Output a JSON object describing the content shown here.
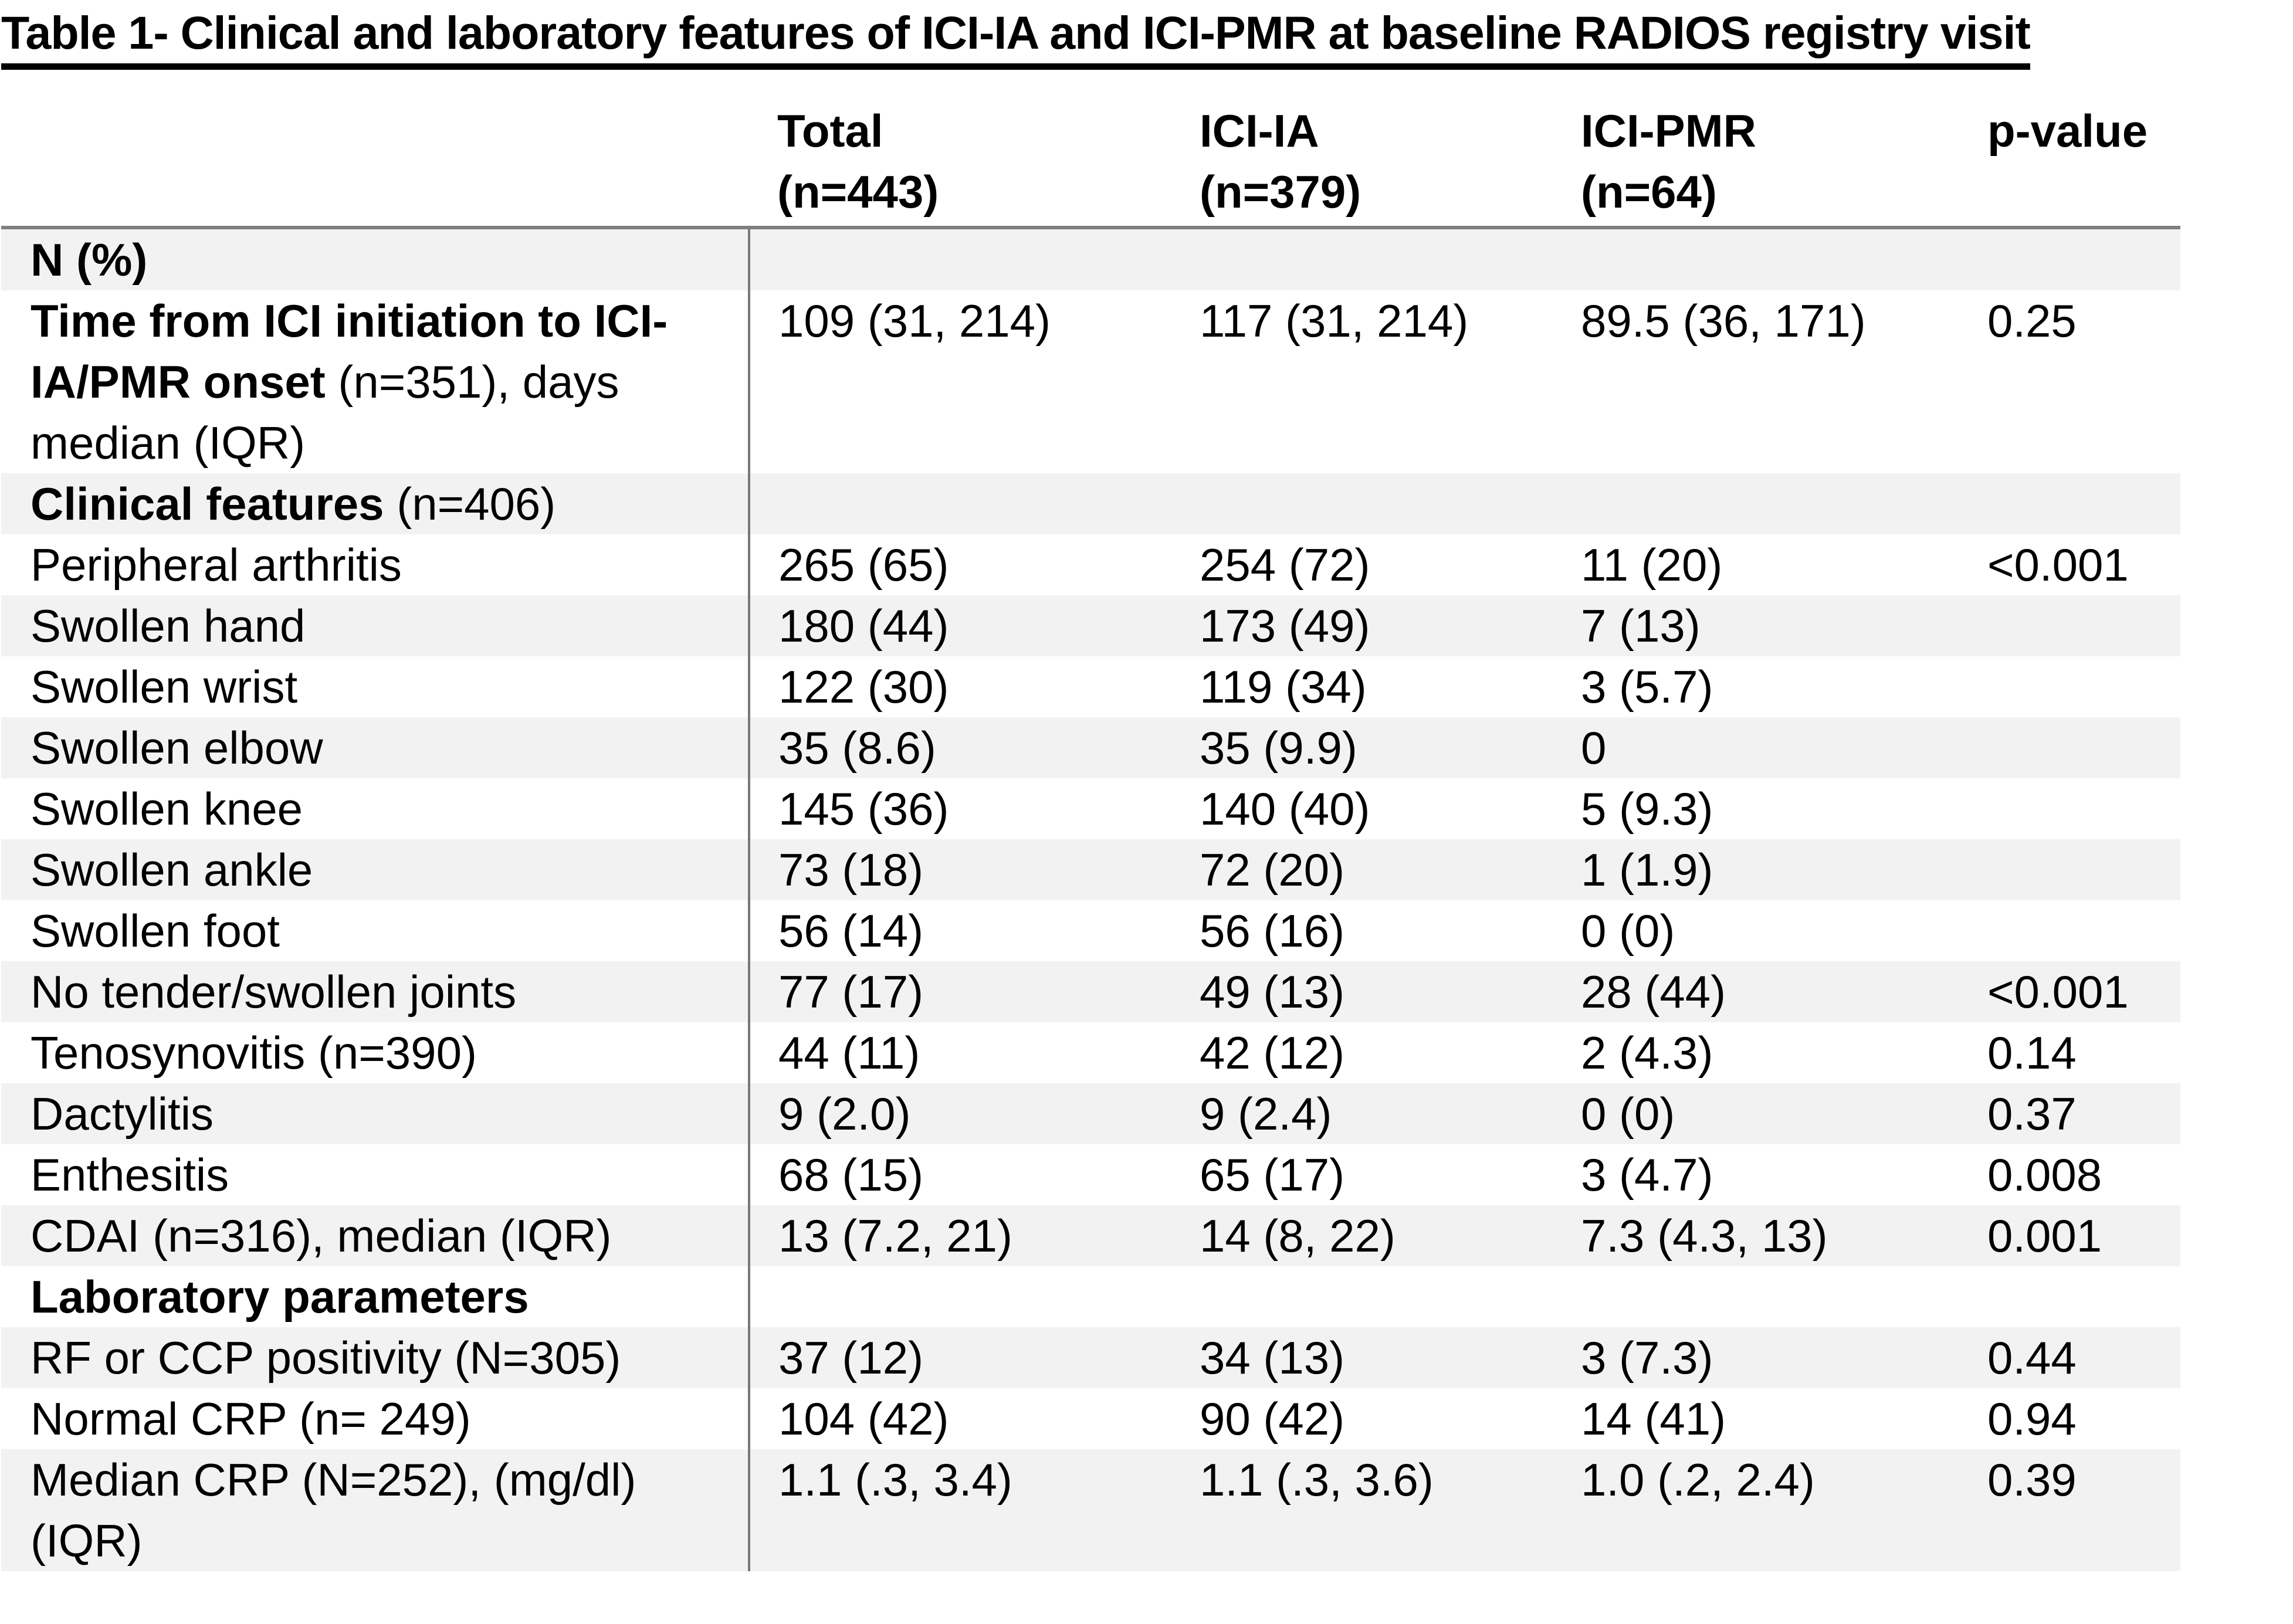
{
  "title": "Table 1- Clinical and laboratory features of ICI-IA and ICI-PMR at baseline RADIOS registry visit",
  "colors": {
    "row_shading": "#f2f2f2",
    "header_rule": "#7f7f7f",
    "column_divider": "#777777",
    "title_underline": "#000000",
    "text": "#000000"
  },
  "table": {
    "columns": [
      {
        "label": "Total",
        "sub": "(n=443)"
      },
      {
        "label": "ICI-IA",
        "sub": "(n=379)"
      },
      {
        "label": "ICI-PMR",
        "sub": "(n=64)"
      },
      {
        "label": "p-value",
        "sub": ""
      }
    ],
    "rows": [
      {
        "bold": "N (%)",
        "label": "",
        "total": "",
        "ici_ia": "",
        "ici_pmr": "",
        "p": ""
      },
      {
        "bold": "Time from ICI initiation to ICI-IA/PMR onset",
        "label": " (n=351), days median (IQR)",
        "total": "109 (31, 214)",
        "ici_ia": "117 (31, 214)",
        "ici_pmr": "89.5 (36, 171)",
        "p": "0.25"
      },
      {
        "bold": "Clinical features",
        "label": " (n=406)",
        "total": "",
        "ici_ia": "",
        "ici_pmr": "",
        "p": ""
      },
      {
        "bold": "",
        "label": "Peripheral arthritis",
        "total": "265 (65)",
        "ici_ia": "254 (72)",
        "ici_pmr": "11 (20)",
        "p": "<0.001"
      },
      {
        "bold": "",
        "label": "Swollen hand",
        "total": "180 (44)",
        "ici_ia": "173 (49)",
        "ici_pmr": "7 (13)",
        "p": ""
      },
      {
        "bold": "",
        "label": "Swollen wrist",
        "total": "122 (30)",
        "ici_ia": "119 (34)",
        "ici_pmr": "3 (5.7)",
        "p": ""
      },
      {
        "bold": "",
        "label": "Swollen elbow",
        "total": "35 (8.6)",
        "ici_ia": "35 (9.9)",
        "ici_pmr": "0",
        "p": ""
      },
      {
        "bold": "",
        "label": "Swollen knee",
        "total": "145 (36)",
        "ici_ia": "140 (40)",
        "ici_pmr": "5 (9.3)",
        "p": ""
      },
      {
        "bold": "",
        "label": "Swollen ankle",
        "total": "73 (18)",
        "ici_ia": "72 (20)",
        "ici_pmr": "1 (1.9)",
        "p": ""
      },
      {
        "bold": "",
        "label": "Swollen foot",
        "total": "56 (14)",
        "ici_ia": "56 (16)",
        "ici_pmr": "0 (0)",
        "p": ""
      },
      {
        "bold": "",
        "label": "No tender/swollen joints",
        "total": "77 (17)",
        "ici_ia": "49 (13)",
        "ici_pmr": "28 (44)",
        "p": "<0.001"
      },
      {
        "bold": "",
        "label": "Tenosynovitis (n=390)",
        "total": "44 (11)",
        "ici_ia": "42 (12)",
        "ici_pmr": "2 (4.3)",
        "p": "0.14"
      },
      {
        "bold": "",
        "label": "Dactylitis",
        "total": "9 (2.0)",
        "ici_ia": "9 (2.4)",
        "ici_pmr": "0 (0)",
        "p": "0.37"
      },
      {
        "bold": "",
        "label": "Enthesitis",
        "total": "68 (15)",
        "ici_ia": "65 (17)",
        "ici_pmr": "3 (4.7)",
        "p": "0.008"
      },
      {
        "bold": "",
        "label": "CDAI (n=316), median (IQR)",
        "total": "13 (7.2, 21)",
        "ici_ia": "14 (8, 22)",
        "ici_pmr": "7.3 (4.3, 13)",
        "p": "0.001"
      },
      {
        "bold": "Laboratory parameters",
        "label": "",
        "total": "",
        "ici_ia": "",
        "ici_pmr": "",
        "p": ""
      },
      {
        "bold": "",
        "label": "RF or CCP positivity (N=305)",
        "total": "37 (12)",
        "ici_ia": "34 (13)",
        "ici_pmr": "3 (7.3)",
        "p": "0.44"
      },
      {
        "bold": "",
        "label": "Normal CRP (n= 249)",
        "total": "104 (42)",
        "ici_ia": "90 (42)",
        "ici_pmr": "14 (41)",
        "p": "0.94"
      },
      {
        "bold": "",
        "label": "Median CRP (N=252), (mg/dl) (IQR)",
        "total": "1.1 (.3, 3.4)",
        "ici_ia": "1.1 (.3, 3.6)",
        "ici_pmr": "1.0 (.2, 2.4)",
        "p": "0.39"
      }
    ]
  }
}
